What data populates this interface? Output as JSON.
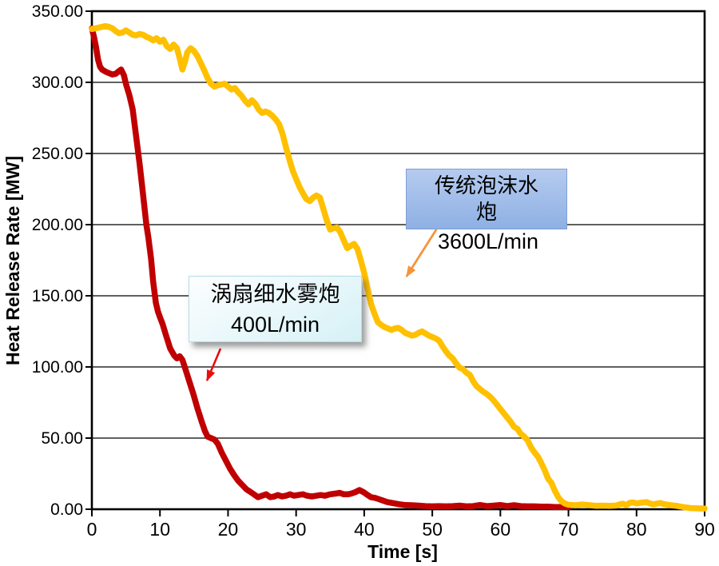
{
  "chart_data": {
    "type": "line",
    "title": "",
    "xlabel": "Time [s]",
    "ylabel": "Heat Release Rate [MW]",
    "xlim": [
      0,
      90
    ],
    "ylim": [
      0,
      350
    ],
    "x_ticks": [
      0,
      10,
      20,
      30,
      40,
      50,
      60,
      70,
      80,
      90
    ],
    "x_tick_labels": [
      "0",
      "10",
      "20",
      "30",
      "40",
      "50",
      "60",
      "70",
      "80",
      "90"
    ],
    "y_ticks": [
      350,
      300,
      250,
      200,
      150,
      100,
      50,
      0
    ],
    "y_tick_labels": [
      "350.00",
      "300.00",
      "250.00",
      "200.00",
      "150.00",
      "100.00",
      "50.00",
      "0.00"
    ],
    "grid": "horizontal gridlines every 50 MW, black plot border",
    "legend": "none (two floating annotation boxes with arrows)",
    "series": [
      {
        "name": "涡扇细水雾炮 400L/min",
        "color": "#C00000",
        "points": [
          [
            0,
            338
          ],
          [
            0.3,
            332
          ],
          [
            0.6,
            325
          ],
          [
            0.9,
            316
          ],
          [
            1.2,
            311
          ],
          [
            1.5,
            309
          ],
          [
            2,
            307.5
          ],
          [
            2.5,
            306.5
          ],
          [
            3,
            305.5
          ],
          [
            3.5,
            306
          ],
          [
            4,
            308
          ],
          [
            4.3,
            309
          ],
          [
            4.7,
            305
          ],
          [
            5,
            299
          ],
          [
            5.5,
            291
          ],
          [
            6,
            281
          ],
          [
            6.5,
            262
          ],
          [
            7,
            243
          ],
          [
            7.5,
            222
          ],
          [
            8,
            200
          ],
          [
            8.3,
            191
          ],
          [
            8.7,
            176
          ],
          [
            9,
            160
          ],
          [
            9.4,
            145
          ],
          [
            9.7,
            139
          ],
          [
            10,
            135
          ],
          [
            10.4,
            130
          ],
          [
            10.9,
            122
          ],
          [
            11.5,
            113
          ],
          [
            12.1,
            108
          ],
          [
            12.5,
            106
          ],
          [
            12.9,
            107.5
          ],
          [
            13.3,
            105
          ],
          [
            13.7,
            99
          ],
          [
            14.3,
            90
          ],
          [
            14.9,
            81
          ],
          [
            15.5,
            71
          ],
          [
            16.1,
            62
          ],
          [
            16.6,
            55
          ],
          [
            17,
            51
          ],
          [
            17.5,
            50
          ],
          [
            18,
            49
          ],
          [
            18.5,
            46
          ],
          [
            19.1,
            39.5
          ],
          [
            19.7,
            34
          ],
          [
            20.3,
            28.5
          ],
          [
            20.9,
            24
          ],
          [
            21.5,
            20
          ],
          [
            22.1,
            17
          ],
          [
            22.7,
            14
          ],
          [
            23.2,
            12.5
          ],
          [
            23.8,
            10.5
          ],
          [
            24.4,
            8.5
          ],
          [
            25,
            9.5
          ],
          [
            25.6,
            10.5
          ],
          [
            26.2,
            8.5
          ],
          [
            26.8,
            9
          ],
          [
            27.3,
            10
          ],
          [
            27.9,
            9
          ],
          [
            28.5,
            9.5
          ],
          [
            29.1,
            10.5
          ],
          [
            29.7,
            9.5
          ],
          [
            30.3,
            10
          ],
          [
            31,
            10.5
          ],
          [
            31.6,
            9.5
          ],
          [
            32.3,
            9
          ],
          [
            33,
            9.5
          ],
          [
            33.6,
            10
          ],
          [
            34.2,
            9.5
          ],
          [
            35,
            10.5
          ],
          [
            35.8,
            11
          ],
          [
            36.4,
            11.5
          ],
          [
            37,
            10.5
          ],
          [
            37.6,
            10.5
          ],
          [
            38.1,
            11
          ],
          [
            38.7,
            12
          ],
          [
            39.3,
            13.5
          ],
          [
            39.9,
            12
          ],
          [
            40.5,
            10
          ],
          [
            41,
            8.5
          ],
          [
            41.6,
            8
          ],
          [
            42.2,
            7
          ],
          [
            42.8,
            6
          ],
          [
            43.4,
            5
          ],
          [
            44,
            4.5
          ],
          [
            44.6,
            4
          ],
          [
            45.2,
            3.5
          ],
          [
            46,
            3
          ],
          [
            47,
            2.8
          ],
          [
            48,
            2.5
          ],
          [
            49,
            2.2
          ],
          [
            50,
            2
          ],
          [
            51,
            2.2
          ],
          [
            52,
            2
          ],
          [
            53,
            2.2
          ],
          [
            54,
            2.5
          ],
          [
            55,
            2
          ],
          [
            56,
            2.2
          ],
          [
            57,
            3
          ],
          [
            58,
            2.2
          ],
          [
            59,
            2.5
          ],
          [
            60,
            3
          ],
          [
            61,
            2.2
          ],
          [
            62,
            2.8
          ],
          [
            63,
            2.2
          ],
          [
            64,
            2
          ],
          [
            65,
            2
          ],
          [
            66,
            1.8
          ],
          [
            67,
            1.8
          ],
          [
            68,
            1.5
          ],
          [
            69,
            1.5
          ],
          [
            70,
            1.5
          ]
        ]
      },
      {
        "name": "传统泡沫水炮 3600L/min",
        "color": "#FFC000",
        "points": [
          [
            0,
            337.5
          ],
          [
            0.5,
            338
          ],
          [
            1,
            338.5
          ],
          [
            1.5,
            339
          ],
          [
            2,
            339.5
          ],
          [
            2.5,
            339
          ],
          [
            3,
            338
          ],
          [
            3.5,
            336
          ],
          [
            4,
            334.5
          ],
          [
            4.5,
            335
          ],
          [
            5,
            336.5
          ],
          [
            5.5,
            335
          ],
          [
            6,
            333.5
          ],
          [
            6.5,
            333
          ],
          [
            7,
            334
          ],
          [
            7.5,
            333.5
          ],
          [
            8,
            332
          ],
          [
            8.5,
            331
          ],
          [
            9,
            329.5
          ],
          [
            9.5,
            331
          ],
          [
            10,
            328.5
          ],
          [
            10.5,
            330
          ],
          [
            11,
            325.5
          ],
          [
            11.5,
            323.5
          ],
          [
            12,
            326.5
          ],
          [
            12.5,
            324
          ],
          [
            13,
            315
          ],
          [
            13.3,
            309
          ],
          [
            13.7,
            315
          ],
          [
            14,
            321
          ],
          [
            14.5,
            324
          ],
          [
            15,
            322
          ],
          [
            15.5,
            318.5
          ],
          [
            16,
            313.5
          ],
          [
            16.5,
            308.5
          ],
          [
            17,
            303
          ],
          [
            17.5,
            299
          ],
          [
            18,
            297
          ],
          [
            18.5,
            298
          ],
          [
            19,
            298.5
          ],
          [
            19.5,
            299
          ],
          [
            20,
            297
          ],
          [
            20.5,
            295
          ],
          [
            21,
            296
          ],
          [
            21.5,
            293
          ],
          [
            22,
            290.5
          ],
          [
            22.5,
            287
          ],
          [
            23,
            284.5
          ],
          [
            23.5,
            287.5
          ],
          [
            24,
            285
          ],
          [
            24.5,
            281
          ],
          [
            25,
            278.5
          ],
          [
            25.5,
            279.5
          ],
          [
            26,
            278.5
          ],
          [
            26.5,
            276.5
          ],
          [
            27,
            274
          ],
          [
            27.5,
            270.5
          ],
          [
            28,
            264
          ],
          [
            28.5,
            254.5
          ],
          [
            29,
            246
          ],
          [
            29.5,
            238
          ],
          [
            30,
            232
          ],
          [
            30.5,
            226.5
          ],
          [
            31,
            222
          ],
          [
            31.5,
            218
          ],
          [
            32,
            216.5
          ],
          [
            32.5,
            219
          ],
          [
            33,
            220.5
          ],
          [
            33.5,
            219
          ],
          [
            34,
            211
          ],
          [
            34.5,
            203
          ],
          [
            35,
            196.5
          ],
          [
            35.5,
            197.5
          ],
          [
            36,
            198
          ],
          [
            36.5,
            194.5
          ],
          [
            37,
            189
          ],
          [
            37.5,
            183.5
          ],
          [
            38,
            185
          ],
          [
            38.5,
            186.5
          ],
          [
            39,
            183
          ],
          [
            39.5,
            175
          ],
          [
            40,
            166
          ],
          [
            40.5,
            155
          ],
          [
            41,
            144.5
          ],
          [
            41.5,
            137.5
          ],
          [
            42,
            131.5
          ],
          [
            42.5,
            129.5
          ],
          [
            43,
            128
          ],
          [
            43.5,
            127
          ],
          [
            44,
            126
          ],
          [
            44.5,
            127
          ],
          [
            45,
            127.5
          ],
          [
            45.5,
            126
          ],
          [
            46,
            124
          ],
          [
            46.5,
            123
          ],
          [
            47,
            122
          ],
          [
            47.5,
            122.5
          ],
          [
            48,
            124
          ],
          [
            48.5,
            125
          ],
          [
            49,
            123.5
          ],
          [
            49.5,
            122
          ],
          [
            50,
            121
          ],
          [
            50.5,
            120
          ],
          [
            51,
            118.5
          ],
          [
            51.5,
            114.5
          ],
          [
            52,
            111
          ],
          [
            52.5,
            108
          ],
          [
            53,
            106
          ],
          [
            53.5,
            102.5
          ],
          [
            54,
            99.5
          ],
          [
            54.5,
            98.5
          ],
          [
            55,
            96
          ],
          [
            55.5,
            94.5
          ],
          [
            56,
            90
          ],
          [
            56.5,
            86.5
          ],
          [
            57,
            84.5
          ],
          [
            57.5,
            82.5
          ],
          [
            58,
            81
          ],
          [
            58.5,
            79
          ],
          [
            59,
            76.5
          ],
          [
            59.5,
            73.5
          ],
          [
            60,
            70.5
          ],
          [
            60.5,
            67.5
          ],
          [
            61,
            64.5
          ],
          [
            61.5,
            61.5
          ],
          [
            62,
            58
          ],
          [
            62.5,
            56.5
          ],
          [
            63,
            53
          ],
          [
            63.5,
            51
          ],
          [
            64,
            48.5
          ],
          [
            64.5,
            43.5
          ],
          [
            65,
            40
          ],
          [
            65.5,
            37
          ],
          [
            66,
            32.5
          ],
          [
            66.5,
            27.5
          ],
          [
            67,
            21.5
          ],
          [
            67.5,
            18.5
          ],
          [
            68,
            13
          ],
          [
            68.5,
            8.5
          ],
          [
            69,
            5.5
          ],
          [
            69.5,
            4
          ],
          [
            70,
            3.2
          ],
          [
            71,
            2.8
          ],
          [
            72,
            3.3
          ],
          [
            73,
            2.9
          ],
          [
            74,
            2.4
          ],
          [
            75,
            2.5
          ],
          [
            76,
            2.4
          ],
          [
            77,
            2.6
          ],
          [
            77.5,
            3.4
          ],
          [
            78,
            3.9
          ],
          [
            78.5,
            2.8
          ],
          [
            79,
            4.5
          ],
          [
            79.5,
            4.8
          ],
          [
            80,
            4.1
          ],
          [
            81,
            4.8
          ],
          [
            81.5,
            5
          ],
          [
            82,
            4
          ],
          [
            82.5,
            3.5
          ],
          [
            83,
            4
          ],
          [
            83.5,
            4.4
          ],
          [
            84,
            3.6
          ],
          [
            85,
            2.8
          ],
          [
            86,
            2.3
          ],
          [
            87,
            1.4
          ],
          [
            88,
            0.8
          ],
          [
            89,
            0.6
          ],
          [
            90,
            0.5
          ]
        ]
      }
    ],
    "annotations": {
      "mist": {
        "line1": "涡扇细水雾炮",
        "line2": "400L/min",
        "box_fill_top": "#FDFEFF",
        "box_fill_bottom": "#D5F1F6",
        "box_border": "#B5DEE5",
        "arrow_color": "#E90E0E",
        "arrow_from": [
          18.9,
          112.9
        ],
        "arrow_to": [
          16.9,
          90.4
        ]
      },
      "foam": {
        "line1": "传统泡沫水",
        "line2": "炮",
        "sub": "3600L/min",
        "box_fill_top": "#B5CBEF",
        "box_fill_bottom": "#8FB0E4",
        "box_border": "#7E9FD8",
        "arrow_color": "#F5953B",
        "arrow_from": [
          50.6,
          196.6
        ],
        "arrow_to": [
          46.2,
          163.5
        ]
      }
    }
  }
}
